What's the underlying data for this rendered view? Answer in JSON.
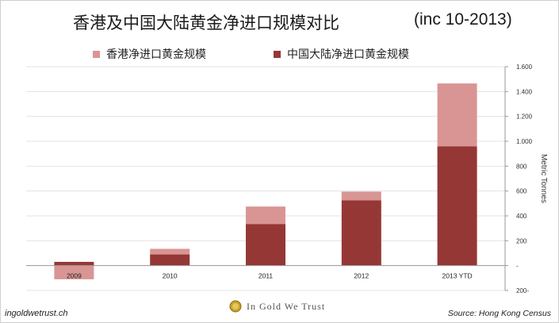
{
  "header": {
    "title": "香港及中国大陆黄金净进口规模对比",
    "subtitle": "(inc 10-2013)"
  },
  "legend": {
    "hk_label": "香港净进口黄金规模",
    "cn_label": "中国大陆净进口黄金规模"
  },
  "footer": {
    "left": "ingoldwetrust.ch",
    "brand": "In Gold We Trust",
    "source": "Source: Hong Kong Census"
  },
  "colors": {
    "hong_kong": "#d99594",
    "mainland_china": "#953735",
    "axis": "#9a9a9a",
    "grid": "#e3e3e3"
  },
  "brand_icon": "gold-coin-icon",
  "chart_data": {
    "type": "bar",
    "stacked": true,
    "categories": [
      "2009",
      "2010",
      "2011",
      "2012",
      "2013 YTD"
    ],
    "series": [
      {
        "name": "中国大陆净进口黄金规模",
        "values": [
          30,
          90,
          335,
          525,
          960
        ]
      },
      {
        "name": "香港净进口黄金规模",
        "values": [
          -110,
          45,
          140,
          70,
          505
        ]
      }
    ],
    "ylabel": "Metric Tonnes",
    "ylim": [
      -200,
      1600
    ],
    "yticks": [
      -200,
      0,
      200,
      400,
      600,
      800,
      1000,
      1200,
      1400,
      1600
    ],
    "ytick_labels": [
      "200-",
      "-",
      "200",
      "400",
      "600",
      "800",
      "1.000",
      "1.200",
      "1.400",
      "1.600"
    ],
    "grid": true,
    "legend_position": "top"
  }
}
